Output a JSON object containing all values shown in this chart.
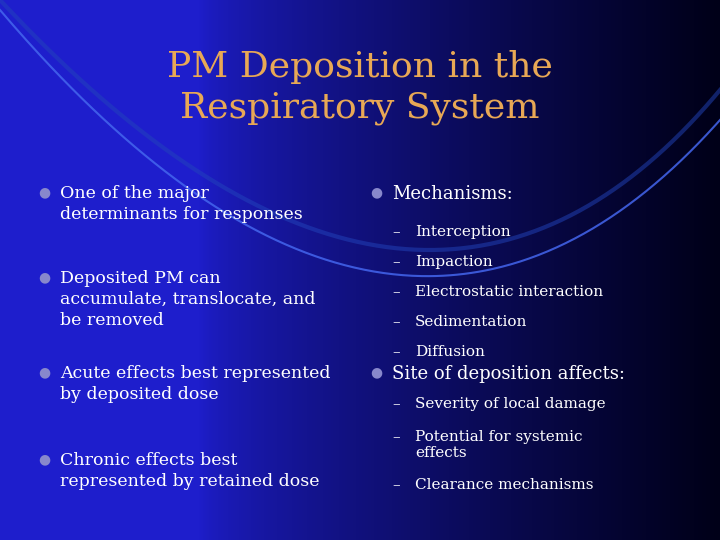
{
  "title_line1": "PM Deposition in the",
  "title_line2": "Respiratory System",
  "title_color": "#E8A855",
  "bg_color_left": "#1E1ECC",
  "bg_color_right": "#000018",
  "text_color": "#FFFFFF",
  "bullet_color": "#8888CC",
  "arc_color": "#4466DD",
  "left_bullets": [
    "One of the major\ndeterminants for responses",
    "Deposited PM can\naccumulate, translocate, and\nbe removed",
    "Acute effects best represented\nby deposited dose",
    "Chronic effects best\nrepresented by retained dose"
  ],
  "right_section1_header": "Mechanisms:",
  "right_section1_items": [
    "Interception",
    "Impaction",
    "Electrostatic interaction",
    "Sedimentation",
    "Diffusion"
  ],
  "right_section2_header": "Site of deposition affects:",
  "right_section2_items": [
    "Severity of local damage",
    "Potential for systemic\neffects",
    "Clearance mechanisms"
  ],
  "fig_width": 7.2,
  "fig_height": 5.4,
  "dpi": 100
}
